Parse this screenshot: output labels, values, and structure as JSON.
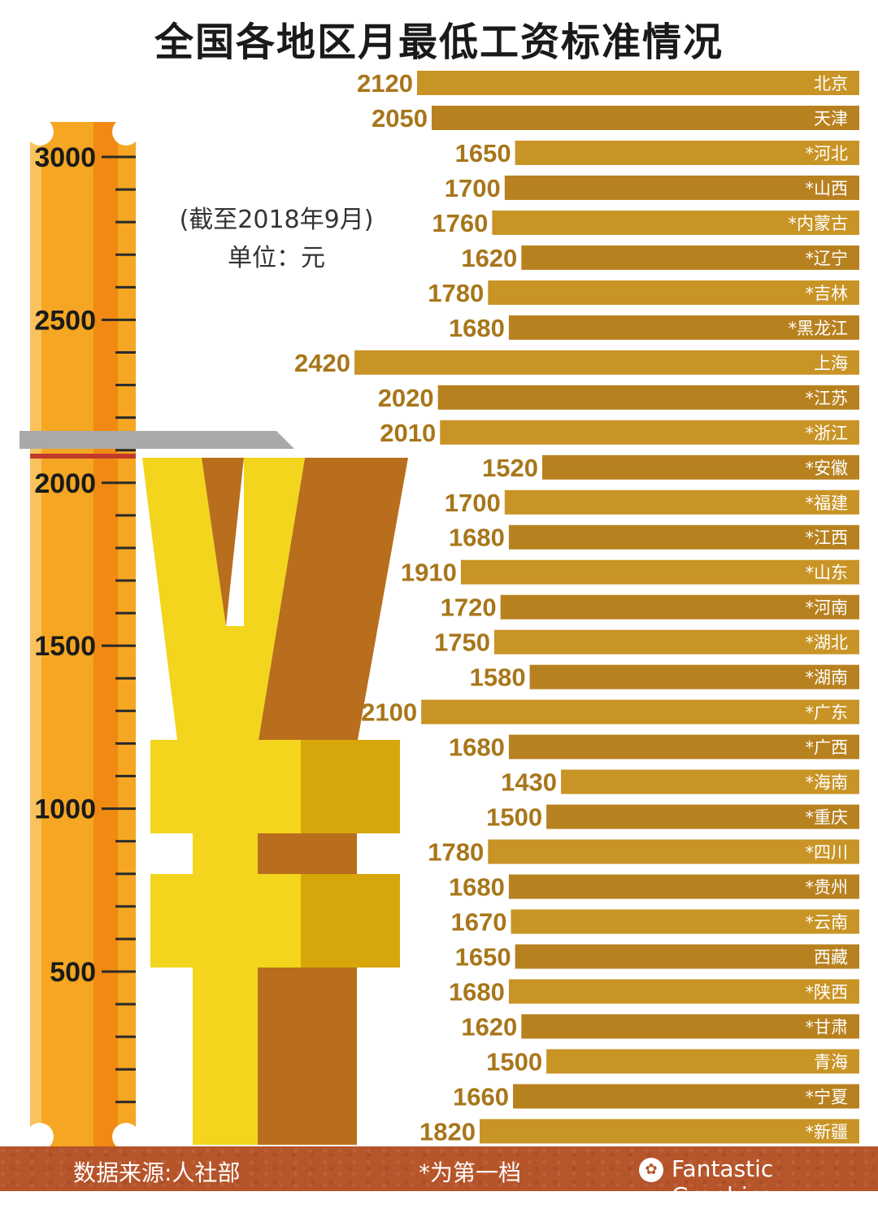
{
  "title": "全国各地区月最低工资标准情况",
  "note": {
    "date": "(截至2018年9月)",
    "unit": "单位：元"
  },
  "footer": {
    "source": "数据来源:人社部",
    "legend": "*为第一档",
    "brand": "Fantastic Graphics",
    "brand_icon": "paw-logo-icon"
  },
  "colors": {
    "bar": "#b8811f",
    "bar_light": "#c99426",
    "value_text": "#a8761a",
    "ruler": "#f5a623",
    "yen_light": "#f2d51c",
    "yen_dark": "#b86e1c",
    "footer": "#b6542a"
  },
  "chart_data": [
    {
      "type": "bar",
      "orientation": "horizontal",
      "title": "全国各地区月最低工资标准情况",
      "categories": [
        "北京",
        "天津",
        "*河北",
        "*山西",
        "*内蒙古",
        "*辽宁",
        "*吉林",
        "*黑龙江",
        "上海",
        "*江苏",
        "*浙江",
        "*安徽",
        "*福建",
        "*江西",
        "*山东",
        "*河南",
        "*湖北",
        "*湖南",
        "*广东",
        "*广西",
        "*海南",
        "*重庆",
        "*四川",
        "*贵州",
        "*云南",
        "西藏",
        "*陕西",
        "*甘肃",
        "青海",
        "*宁夏",
        "*新疆"
      ],
      "values": [
        2120,
        2050,
        1650,
        1700,
        1760,
        1620,
        1780,
        1680,
        2420,
        2020,
        2010,
        1520,
        1700,
        1680,
        1910,
        1720,
        1750,
        1580,
        2100,
        1680,
        1430,
        1500,
        1780,
        1680,
        1670,
        1650,
        1680,
        1620,
        1500,
        1660,
        1820
      ],
      "value_labels": true
    },
    {
      "type": "gauge",
      "subtype": "ruler",
      "tick_labels": [
        "3000",
        "2500",
        "2000",
        "1500",
        "1000",
        "500"
      ],
      "range": [
        0,
        3100
      ],
      "indicator_value": 2080
    }
  ]
}
